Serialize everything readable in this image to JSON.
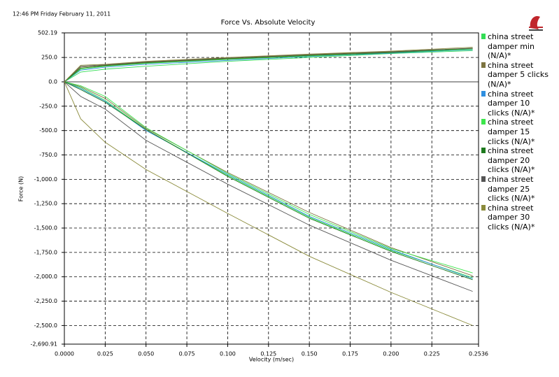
{
  "chart_data": {
    "type": "line",
    "timestamp": "12:46 PM Friday February 11, 2011",
    "title": "Force Vs. Absolute Velocity",
    "x_label": "Velocity (m/sec)",
    "y_label": "Force (N)",
    "x": [
      0,
      0.01,
      0.025,
      0.05,
      0.1,
      0.15,
      0.2,
      0.25
    ],
    "xlim": [
      0,
      0.2536
    ],
    "xticks": [
      {
        "value": 0,
        "label": "0.0000"
      },
      0.025,
      {
        "value": 0.05,
        "label": "0.050"
      },
      0.075,
      {
        "value": 0.1,
        "label": "0.100"
      },
      0.125,
      {
        "value": 0.15,
        "label": "0.150"
      },
      0.175,
      {
        "value": 0.2,
        "label": "0.200"
      },
      0.225,
      0.2536
    ],
    "ylim": [
      -2690.91,
      502.19
    ],
    "yticks": [
      502.19,
      {
        "value": 250,
        "label": "250.0"
      },
      {
        "value": 0,
        "label": "0.0"
      },
      {
        "value": -250,
        "label": "-250.0"
      },
      {
        "value": -500,
        "label": "-500.0"
      },
      {
        "value": -750,
        "label": "-750.0"
      },
      {
        "value": -1000,
        "label": "-1,000.0"
      },
      {
        "value": -1250,
        "label": "-1,250.0"
      },
      {
        "value": -1500,
        "label": "-1,500.0"
      },
      {
        "value": -1750,
        "label": "-1,750.0"
      },
      {
        "value": -2000,
        "label": "-2,000.0"
      },
      {
        "value": -2250,
        "label": "-2,250.0"
      },
      {
        "value": -2500,
        "label": "-2,500.0"
      },
      {
        "value": -2690.91,
        "label": "-2,690.91"
      }
    ],
    "grid": true,
    "series": [
      {
        "name": "china street damper min (N/A)*",
        "color": "#33dd55",
        "values": [
          [
            0,
            100,
            130,
            160,
            210,
            250,
            290,
            320
          ],
          [
            0,
            -60,
            -190,
            -490,
            -960,
            -1390,
            -1730,
            -2010
          ]
        ]
      },
      {
        "name": "china street damper 5 clicks (N/A)*",
        "color": "#7d7440",
        "values": [
          [
            0,
            150,
            170,
            200,
            240,
            275,
            305,
            340
          ],
          [
            0,
            -50,
            -170,
            -480,
            -930,
            -1340,
            -1700,
            -1990
          ]
        ]
      },
      {
        "name": "china street damper 10 clicks (N/A)*",
        "color": "#2f8fe0",
        "values": [
          [
            0,
            120,
            150,
            180,
            220,
            260,
            295,
            330
          ],
          [
            0,
            -70,
            -200,
            -500,
            -950,
            -1380,
            -1720,
            -2020
          ]
        ]
      },
      {
        "name": "china street damper 15 clicks (N/A)*",
        "color": "#3ce64b",
        "values": [
          [
            0,
            130,
            160,
            190,
            230,
            265,
            300,
            335
          ],
          [
            0,
            -40,
            -150,
            -470,
            -940,
            -1360,
            -1710,
            -1960
          ]
        ]
      },
      {
        "name": "china street damper 20 clicks (N/A)*",
        "color": "#1e7a1e",
        "values": [
          [
            0,
            140,
            165,
            195,
            235,
            270,
            300,
            345
          ],
          [
            0,
            -80,
            -210,
            -490,
            -970,
            -1400,
            -1740,
            -2030
          ]
        ]
      },
      {
        "name": "china street damper 25 clicks (N/A)*",
        "color": "#555555",
        "values": [
          [
            0,
            160,
            175,
            205,
            245,
            280,
            310,
            345
          ],
          [
            0,
            -150,
            -280,
            -600,
            -1050,
            -1470,
            -1830,
            -2150
          ]
        ]
      },
      {
        "name": "china street damper 30 clicks (N/A)*",
        "color": "#8a8a3a",
        "values": [
          [
            0,
            170,
            180,
            210,
            250,
            285,
            315,
            355
          ],
          [
            0,
            -380,
            -620,
            -900,
            -1350,
            -1790,
            -2160,
            -2500
          ]
        ]
      }
    ]
  }
}
